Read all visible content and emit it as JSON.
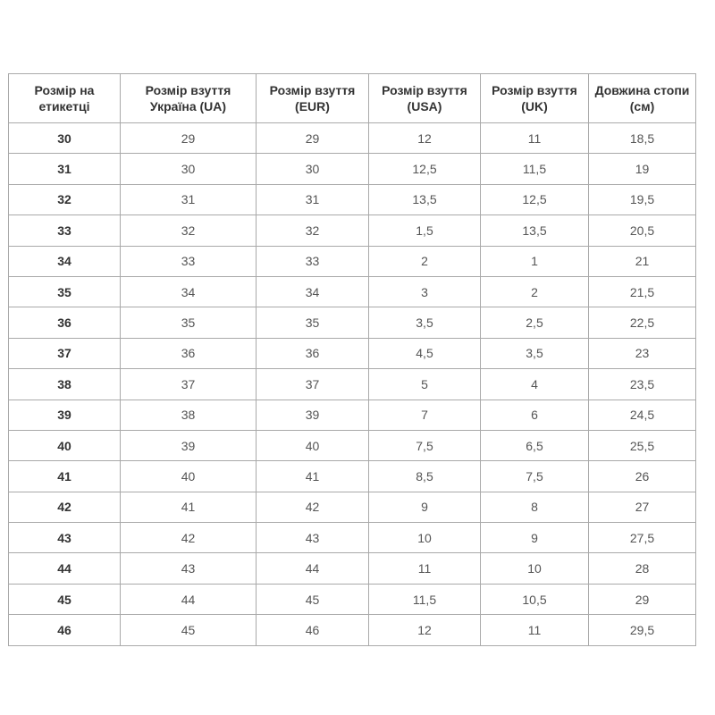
{
  "table": {
    "headers": [
      "Розмір на етикетці",
      "Розмір взуття Україна (UA)",
      "Розмір взуття (EUR)",
      "Розмір взуття (USA)",
      "Розмір взуття (UK)",
      "Довжина стопи (см)"
    ],
    "rows": [
      [
        "30",
        "29",
        "29",
        "12",
        "11",
        "18,5"
      ],
      [
        "31",
        "30",
        "30",
        "12,5",
        "11,5",
        "19"
      ],
      [
        "32",
        "31",
        "31",
        "13,5",
        "12,5",
        "19,5"
      ],
      [
        "33",
        "32",
        "32",
        "1,5",
        "13,5",
        "20,5"
      ],
      [
        "34",
        "33",
        "33",
        "2",
        "1",
        "21"
      ],
      [
        "35",
        "34",
        "34",
        "3",
        "2",
        "21,5"
      ],
      [
        "36",
        "35",
        "35",
        "3,5",
        "2,5",
        "22,5"
      ],
      [
        "37",
        "36",
        "36",
        "4,5",
        "3,5",
        "23"
      ],
      [
        "38",
        "37",
        "37",
        "5",
        "4",
        "23,5"
      ],
      [
        "39",
        "38",
        "39",
        "7",
        "6",
        "24,5"
      ],
      [
        "40",
        "39",
        "40",
        "7,5",
        "6,5",
        "25,5"
      ],
      [
        "41",
        "40",
        "41",
        "8,5",
        "7,5",
        "26"
      ],
      [
        "42",
        "41",
        "42",
        "9",
        "8",
        "27"
      ],
      [
        "43",
        "42",
        "43",
        "10",
        "9",
        "27,5"
      ],
      [
        "44",
        "43",
        "44",
        "11",
        "10",
        "28"
      ],
      [
        "45",
        "44",
        "45",
        "11,5",
        "10,5",
        "29"
      ],
      [
        "46",
        "45",
        "46",
        "12",
        "11",
        "29,5"
      ]
    ]
  }
}
